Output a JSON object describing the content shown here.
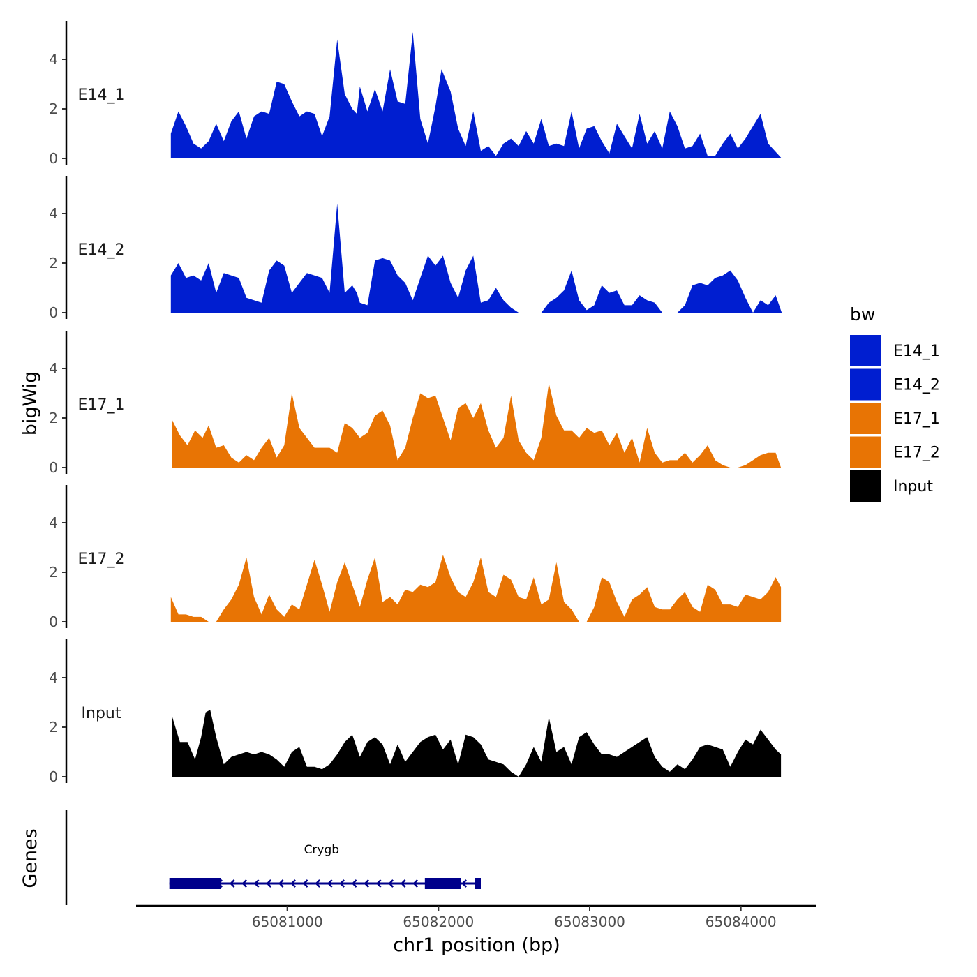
{
  "chart_data": {
    "type": "area",
    "ylabel": "bigWig",
    "xlabel": "chr1 position (bp)",
    "ylim": [
      0,
      5.4
    ],
    "y_ticks": [
      0,
      2,
      4
    ],
    "x_range": [
      65080000,
      65084500
    ],
    "x_ticks": [
      65081000,
      65082000,
      65083000,
      65084000
    ],
    "x_tick_labels": [
      "65081000",
      "65082000",
      "65083000",
      "65084000"
    ],
    "legend": {
      "title": "bw",
      "placement": "right",
      "entries": [
        {
          "label": "E14_1",
          "color": "#001ed0"
        },
        {
          "label": "E14_2",
          "color": "#001ed0"
        },
        {
          "label": "E17_1",
          "color": "#e87404"
        },
        {
          "label": "E17_2",
          "color": "#e87404"
        },
        {
          "label": "Input",
          "color": "#000000"
        }
      ]
    },
    "series": [
      {
        "name": "E14_1",
        "color": "#001ed0",
        "x": [
          65080230,
          65080280,
          65080330,
          65080380,
          65080430,
          65080480,
          65080530,
          65080580,
          65080630,
          65080680,
          65080730,
          65080780,
          65080830,
          65080880,
          65080930,
          65080980,
          65081030,
          65081080,
          65081130,
          65081180,
          65081230,
          65081280,
          65081330,
          65081380,
          65081430,
          65081460,
          65081480,
          65081530,
          65081580,
          65081630,
          65081680,
          65081730,
          65081780,
          65081830,
          65081880,
          65081930,
          65081980,
          65082020,
          65082080,
          65082130,
          65082180,
          65082230,
          65082280,
          65082330,
          65082380,
          65082430,
          65082480,
          65082530,
          65082580,
          65082630,
          65082680,
          65082730,
          65082780,
          65082830,
          65082880,
          65082930,
          65082980,
          65083030,
          65083080,
          65083130,
          65083180,
          65083230,
          65083280,
          65083330,
          65083380,
          65083430,
          65083480,
          65083530,
          65083580,
          65083630,
          65083680,
          65083730,
          65083780,
          65083830,
          65083880,
          65083930,
          65083980,
          65084030,
          65084080,
          65084130,
          65084180,
          65084270
        ],
        "values": [
          1.0,
          1.9,
          1.3,
          0.6,
          0.4,
          0.7,
          1.4,
          0.7,
          1.5,
          1.9,
          0.8,
          1.7,
          1.9,
          1.8,
          3.1,
          3.0,
          2.3,
          1.7,
          1.9,
          1.8,
          0.9,
          1.7,
          4.8,
          2.6,
          2.0,
          1.8,
          2.9,
          1.9,
          2.8,
          1.9,
          3.6,
          2.3,
          2.2,
          5.1,
          1.6,
          0.6,
          2.1,
          3.6,
          2.7,
          1.2,
          0.5,
          1.9,
          0.3,
          0.5,
          0.1,
          0.6,
          0.8,
          0.5,
          1.1,
          0.6,
          1.6,
          0.5,
          0.6,
          0.5,
          1.9,
          0.4,
          1.2,
          1.3,
          0.7,
          0.2,
          1.4,
          0.9,
          0.4,
          1.8,
          0.6,
          1.1,
          0.4,
          1.9,
          1.3,
          0.4,
          0.5,
          1.0,
          0.1,
          0.1,
          0.6,
          1.0,
          0.4,
          0.8,
          1.3,
          1.8,
          0.6,
          0.0
        ]
      },
      {
        "name": "E14_2",
        "color": "#001ed0",
        "x": [
          65080230,
          65080280,
          65080330,
          65080380,
          65080430,
          65080480,
          65080530,
          65080580,
          65080630,
          65080680,
          65080730,
          65080780,
          65080830,
          65080880,
          65080930,
          65080980,
          65081030,
          65081080,
          65081130,
          65081180,
          65081230,
          65081280,
          65081330,
          65081380,
          65081430,
          65081460,
          65081480,
          65081530,
          65081580,
          65081630,
          65081680,
          65081730,
          65081780,
          65081830,
          65081880,
          65081930,
          65081980,
          65082030,
          65082080,
          65082130,
          65082180,
          65082230,
          65082280,
          65082330,
          65082380,
          65082430,
          65082480,
          65082530,
          65082580,
          65082630,
          65082680,
          65082730,
          65082780,
          65082830,
          65082880,
          65082930,
          65082980,
          65083030,
          65083080,
          65083130,
          65083180,
          65083230,
          65083280,
          65083330,
          65083380,
          65083430,
          65083480,
          65083530,
          65083580,
          65083630,
          65083680,
          65083730,
          65083780,
          65083830,
          65083880,
          65083930,
          65083980,
          65084030,
          65084080,
          65084130,
          65084180,
          65084230,
          65084270
        ],
        "values": [
          1.5,
          2.0,
          1.4,
          1.5,
          1.3,
          2.0,
          0.8,
          1.6,
          1.5,
          1.4,
          0.6,
          0.5,
          0.4,
          1.7,
          2.1,
          1.9,
          0.8,
          1.2,
          1.6,
          1.5,
          1.4,
          0.8,
          4.4,
          0.8,
          1.1,
          0.8,
          0.4,
          0.3,
          2.1,
          2.2,
          2.1,
          1.5,
          1.2,
          0.5,
          1.4,
          2.3,
          1.9,
          2.3,
          1.2,
          0.6,
          1.7,
          2.3,
          0.4,
          0.5,
          1.0,
          0.5,
          0.2,
          0.0,
          0.0,
          0.0,
          0.0,
          0.4,
          0.6,
          0.9,
          1.7,
          0.5,
          0.1,
          0.3,
          1.1,
          0.8,
          0.9,
          0.3,
          0.3,
          0.7,
          0.5,
          0.4,
          0.0,
          0.0,
          0.0,
          0.3,
          1.1,
          1.2,
          1.1,
          1.4,
          1.5,
          1.7,
          1.3,
          0.6,
          0.0,
          0.5,
          0.3,
          0.7,
          0.0
        ]
      },
      {
        "name": "E17_1",
        "color": "#e87404",
        "x": [
          65080240,
          65080290,
          65080340,
          65080390,
          65080440,
          65080480,
          65080530,
          65080580,
          65080630,
          65080680,
          65080730,
          65080780,
          65080830,
          65080880,
          65080930,
          65080980,
          65081030,
          65081080,
          65081130,
          65081180,
          65081230,
          65081280,
          65081330,
          65081380,
          65081430,
          65081480,
          65081530,
          65081580,
          65081630,
          65081680,
          65081730,
          65081780,
          65081830,
          65081880,
          65081930,
          65081980,
          65082030,
          65082080,
          65082130,
          65082180,
          65082230,
          65082280,
          65082330,
          65082380,
          65082430,
          65082480,
          65082530,
          65082580,
          65082630,
          65082680,
          65082730,
          65082780,
          65082830,
          65082880,
          65082930,
          65082980,
          65083030,
          65083080,
          65083130,
          65083180,
          65083230,
          65083280,
          65083330,
          65083380,
          65083430,
          65083480,
          65083530,
          65083580,
          65083630,
          65083680,
          65083730,
          65083780,
          65083830,
          65083880,
          65083930,
          65083980,
          65084030,
          65084080,
          65084130,
          65084180,
          65084230,
          65084265
        ],
        "values": [
          1.9,
          1.3,
          0.9,
          1.5,
          1.2,
          1.7,
          0.8,
          0.9,
          0.4,
          0.2,
          0.5,
          0.3,
          0.8,
          1.2,
          0.4,
          0.9,
          3.0,
          1.6,
          1.2,
          0.8,
          0.8,
          0.8,
          0.6,
          1.8,
          1.6,
          1.2,
          1.4,
          2.1,
          2.3,
          1.7,
          0.3,
          0.8,
          2.0,
          3.0,
          2.8,
          2.9,
          2.0,
          1.1,
          2.4,
          2.6,
          2.0,
          2.6,
          1.5,
          0.8,
          1.2,
          2.9,
          1.1,
          0.6,
          0.3,
          1.2,
          3.4,
          2.1,
          1.5,
          1.5,
          1.2,
          1.6,
          1.4,
          1.5,
          0.9,
          1.4,
          0.6,
          1.2,
          0.2,
          1.6,
          0.6,
          0.2,
          0.3,
          0.3,
          0.6,
          0.2,
          0.5,
          0.9,
          0.3,
          0.1,
          0.0,
          0.0,
          0.1,
          0.3,
          0.5,
          0.6,
          0.6,
          0.0
        ]
      },
      {
        "name": "E17_2",
        "color": "#e87404",
        "x": [
          65080230,
          65080280,
          65080330,
          65080380,
          65080430,
          65080480,
          65080530,
          65080580,
          65080630,
          65080680,
          65080730,
          65080780,
          65080830,
          65080880,
          65080930,
          65080980,
          65081030,
          65081080,
          65081130,
          65081180,
          65081230,
          65081280,
          65081330,
          65081380,
          65081430,
          65081480,
          65081530,
          65081580,
          65081630,
          65081680,
          65081730,
          65081780,
          65081830,
          65081880,
          65081930,
          65081980,
          65082030,
          65082080,
          65082130,
          65082180,
          65082230,
          65082280,
          65082330,
          65082380,
          65082430,
          65082480,
          65082530,
          65082580,
          65082630,
          65082680,
          65082730,
          65082780,
          65082830,
          65082880,
          65082930,
          65082980,
          65083030,
          65083080,
          65083130,
          65083180,
          65083230,
          65083280,
          65083330,
          65083380,
          65083430,
          65083480,
          65083530,
          65083580,
          65083630,
          65083680,
          65083730,
          65083780,
          65083830,
          65083880,
          65083930,
          65083980,
          65084030,
          65084080,
          65084130,
          65084180,
          65084230,
          65084265
        ],
        "values": [
          1.0,
          0.3,
          0.3,
          0.2,
          0.2,
          0.0,
          0.0,
          0.5,
          0.9,
          1.5,
          2.6,
          1.0,
          0.3,
          1.1,
          0.5,
          0.2,
          0.7,
          0.5,
          1.5,
          2.5,
          1.5,
          0.4,
          1.6,
          2.4,
          1.5,
          0.6,
          1.7,
          2.6,
          0.8,
          1.0,
          0.7,
          1.3,
          1.2,
          1.5,
          1.4,
          1.6,
          2.7,
          1.8,
          1.2,
          1.0,
          1.6,
          2.6,
          1.2,
          1.0,
          1.9,
          1.7,
          1.0,
          0.9,
          1.8,
          0.7,
          0.9,
          2.4,
          0.8,
          0.5,
          0.0,
          0.0,
          0.6,
          1.8,
          1.6,
          0.8,
          0.2,
          0.9,
          1.1,
          1.4,
          0.6,
          0.5,
          0.5,
          0.9,
          1.2,
          0.6,
          0.4,
          1.5,
          1.3,
          0.7,
          0.7,
          0.6,
          1.1,
          1.0,
          0.9,
          1.2,
          1.8,
          1.4
        ]
      },
      {
        "name": "Input",
        "color": "#000000",
        "x": [
          65080240,
          65080290,
          65080340,
          65080390,
          65080430,
          65080460,
          65080490,
          65080530,
          65080580,
          65080630,
          65080680,
          65080730,
          65080780,
          65080830,
          65080880,
          65080930,
          65080980,
          65081030,
          65081080,
          65081130,
          65081180,
          65081230,
          65081280,
          65081330,
          65081380,
          65081430,
          65081480,
          65081530,
          65081580,
          65081630,
          65081680,
          65081730,
          65081780,
          65081830,
          65081880,
          65081930,
          65081980,
          65082030,
          65082080,
          65082130,
          65082180,
          65082230,
          65082280,
          65082330,
          65082380,
          65082430,
          65082480,
          65082530,
          65082580,
          65082630,
          65082680,
          65082730,
          65082780,
          65082830,
          65082880,
          65082930,
          65082980,
          65083030,
          65083080,
          65083130,
          65083180,
          65083230,
          65083280,
          65083330,
          65083380,
          65083430,
          65083480,
          65083530,
          65083580,
          65083630,
          65083680,
          65083730,
          65083780,
          65083830,
          65083880,
          65083930,
          65083980,
          65084030,
          65084080,
          65084130,
          65084180,
          65084230,
          65084265
        ],
        "values": [
          2.4,
          1.4,
          1.4,
          0.7,
          1.6,
          2.6,
          2.7,
          1.6,
          0.5,
          0.8,
          0.9,
          1.0,
          0.9,
          1.0,
          0.9,
          0.7,
          0.4,
          1.0,
          1.2,
          0.4,
          0.4,
          0.3,
          0.5,
          0.9,
          1.4,
          1.7,
          0.8,
          1.4,
          1.6,
          1.3,
          0.5,
          1.3,
          0.6,
          1.0,
          1.4,
          1.6,
          1.7,
          1.1,
          1.5,
          0.5,
          1.7,
          1.6,
          1.3,
          0.7,
          0.6,
          0.5,
          0.2,
          0.0,
          0.5,
          1.2,
          0.6,
          2.4,
          1.0,
          1.2,
          0.5,
          1.6,
          1.8,
          1.3,
          0.9,
          0.9,
          0.8,
          1.0,
          1.2,
          1.4,
          1.6,
          0.8,
          0.4,
          0.2,
          0.5,
          0.3,
          0.7,
          1.2,
          1.3,
          1.2,
          1.1,
          0.4,
          1.0,
          1.5,
          1.3,
          1.9,
          1.5,
          1.1,
          0.9
        ]
      }
    ],
    "genes": {
      "label": "Genes",
      "items": [
        {
          "name": "Crygb",
          "strand": "-",
          "start": 65080220,
          "end": 65082280,
          "exons": [
            [
              65080220,
              65080560
            ],
            [
              65081910,
              65082150
            ],
            [
              65082240,
              65082280
            ]
          ]
        }
      ]
    }
  }
}
